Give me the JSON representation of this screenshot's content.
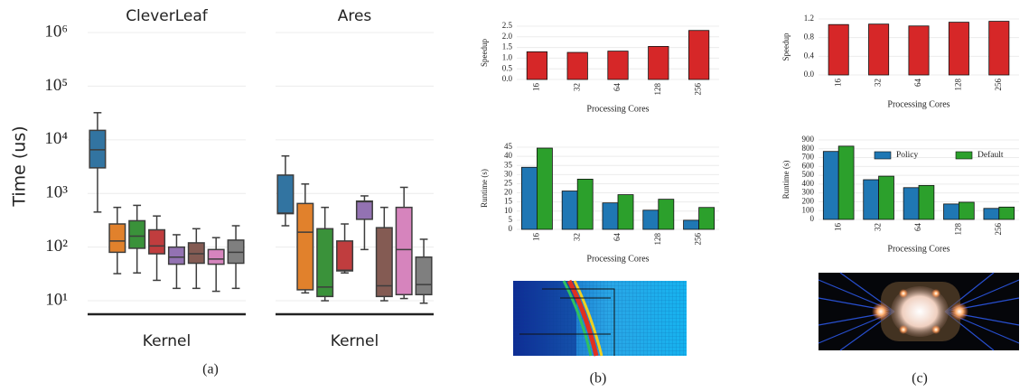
{
  "chart_data": [
    {
      "type": "box",
      "title": "CleverLeaf",
      "xlabel": "Kernel",
      "ylabel": "Time (us)",
      "log_scale": true,
      "grid": true,
      "ylim": [
        5.6,
        1860000
      ],
      "yticks": [
        {
          "value": 10,
          "label": "10¹"
        },
        {
          "value": 100,
          "label": "10²"
        },
        {
          "value": 1000,
          "label": "10³"
        },
        {
          "value": 10000,
          "label": "10⁴"
        },
        {
          "value": 100000,
          "label": "10⁵"
        },
        {
          "value": 1000000,
          "label": "10⁶"
        }
      ],
      "boxes": [
        {
          "color": "#3274a1",
          "whislo": 450,
          "q1": 3000,
          "med": 6500,
          "q3": 15000,
          "whishi": 32000
        },
        {
          "color": "#e1812c",
          "whislo": 32,
          "q1": 80,
          "med": 130,
          "q3": 270,
          "whishi": 550
        },
        {
          "color": "#3a923a",
          "whislo": 33,
          "q1": 95,
          "med": 160,
          "q3": 310,
          "whishi": 600
        },
        {
          "color": "#c03d3e",
          "whislo": 24,
          "q1": 75,
          "med": 105,
          "q3": 210,
          "whishi": 380
        },
        {
          "color": "#9372b2",
          "whislo": 17,
          "q1": 48,
          "med": 65,
          "q3": 100,
          "whishi": 170
        },
        {
          "color": "#845b53",
          "whislo": 17,
          "q1": 50,
          "med": 75,
          "q3": 120,
          "whishi": 220
        },
        {
          "color": "#d684bd",
          "whislo": 15,
          "q1": 48,
          "med": 60,
          "q3": 90,
          "whishi": 150
        },
        {
          "color": "#7f7f7f",
          "whislo": 17,
          "q1": 50,
          "med": 80,
          "q3": 135,
          "whishi": 250
        }
      ]
    },
    {
      "type": "box",
      "title": "Ares",
      "xlabel": "Kernel",
      "log_scale": true,
      "grid": true,
      "ylim": [
        5.6,
        1860000
      ],
      "yticks": [
        10,
        100,
        1000,
        10000,
        100000,
        1000000
      ],
      "boxes": [
        {
          "color": "#3274a1",
          "whislo": 250,
          "q1": 420,
          "med": 430,
          "q3": 2200,
          "whishi": 5000
        },
        {
          "color": "#e1812c",
          "whislo": 14,
          "q1": 16,
          "med": 190,
          "q3": 650,
          "whishi": 1500
        },
        {
          "color": "#3a923a",
          "whislo": 10,
          "q1": 12,
          "med": 18,
          "q3": 220,
          "whishi": 550
        },
        {
          "color": "#c03d3e",
          "whislo": 33,
          "q1": 36,
          "med": 37,
          "q3": 130,
          "whishi": 270
        },
        {
          "color": "#9372b2",
          "whislo": 90,
          "q1": 330,
          "med": 700,
          "q3": 720,
          "whishi": 900
        },
        {
          "color": "#845b53",
          "whislo": 10,
          "q1": 12,
          "med": 19,
          "q3": 230,
          "whishi": 550
        },
        {
          "color": "#d684bd",
          "whislo": 11,
          "q1": 13,
          "med": 90,
          "q3": 550,
          "whishi": 1300
        },
        {
          "color": "#7f7f7f",
          "whislo": 9,
          "q1": 13,
          "med": 20,
          "q3": 65,
          "whishi": 140
        }
      ]
    },
    {
      "type": "bar",
      "ylabel": "Speedup",
      "xlabel": "Processing Cores",
      "grid": true,
      "color": "#d62728",
      "categories": [
        "16",
        "32",
        "64",
        "128",
        "256"
      ],
      "values": [
        1.3,
        1.27,
        1.33,
        1.55,
        2.3
      ],
      "ylim": [
        0,
        2.5
      ],
      "yticks": [
        {
          "value": 0,
          "label": "0.0"
        },
        {
          "value": 0.5,
          "label": "0.5"
        },
        {
          "value": 1,
          "label": "1.0"
        },
        {
          "value": 1.5,
          "label": "1.5"
        },
        {
          "value": 2,
          "label": "2.0"
        },
        {
          "value": 2.5,
          "label": "2.5"
        }
      ]
    },
    {
      "type": "bar",
      "ylabel": "Runtime (s)",
      "xlabel": "Processing Cores",
      "grid": true,
      "categories": [
        "16",
        "32",
        "64",
        "128",
        "256"
      ],
      "series": [
        {
          "color": "#1f77b4",
          "values": [
            34,
            21,
            14.5,
            10.5,
            5
          ]
        },
        {
          "color": "#2ca02c",
          "values": [
            44.5,
            27.5,
            19,
            16.5,
            12
          ]
        }
      ],
      "ylim": [
        0,
        45
      ],
      "yticks": [
        0,
        5,
        10,
        15,
        20,
        25,
        30,
        35,
        40,
        45
      ]
    },
    {
      "type": "bar",
      "ylabel": "Speedup",
      "xlabel": "Processing Cores",
      "grid": true,
      "color": "#d62728",
      "categories": [
        "16",
        "32",
        "64",
        "128",
        "256"
      ],
      "values": [
        1.08,
        1.09,
        1.05,
        1.13,
        1.15
      ],
      "ylim": [
        0,
        1.2
      ],
      "yticks": [
        {
          "value": 0,
          "label": "0.0"
        },
        {
          "value": 0.4,
          "label": "0.4"
        },
        {
          "value": 0.8,
          "label": "0.8"
        },
        {
          "value": 1.2,
          "label": "1.2"
        }
      ]
    },
    {
      "type": "bar",
      "ylabel": "Runtime (s)",
      "xlabel": "Processing Cores",
      "grid": true,
      "legend": "upper right",
      "categories": [
        "16",
        "32",
        "64",
        "128",
        "256"
      ],
      "series": [
        {
          "name": "Policy",
          "color": "#1f77b4",
          "values": [
            770,
            450,
            360,
            175,
            125
          ]
        },
        {
          "name": "Default",
          "color": "#2ca02c",
          "values": [
            830,
            490,
            385,
            195,
            140
          ]
        }
      ],
      "ylim": [
        0,
        900
      ],
      "yticks": [
        0,
        100,
        200,
        300,
        400,
        500,
        600,
        700,
        800,
        900
      ]
    }
  ],
  "captions": [
    "(a)",
    "(b)",
    "(c)"
  ]
}
